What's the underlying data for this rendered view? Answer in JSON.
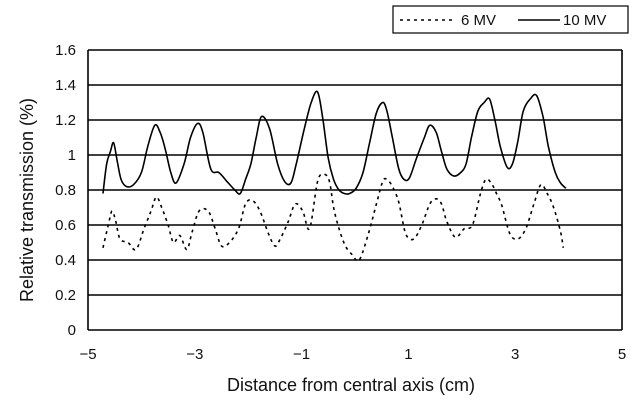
{
  "chart_data": {
    "type": "line",
    "title": "",
    "xlabel": "Distance from central axis (cm)",
    "ylabel": "Relative transmission (%)",
    "xlim": [
      -5,
      5
    ],
    "ylim": [
      0,
      1.6
    ],
    "x_ticks": [
      "-5",
      "-3",
      "-1",
      "1",
      "3",
      "5"
    ],
    "y_ticks": [
      "0",
      "0.2",
      "0.4",
      "0.6",
      "0.8",
      "1",
      "1.2",
      "1.4",
      "1.6"
    ],
    "grid": true,
    "legend_position": "top-right",
    "series": [
      {
        "name": "6 MV",
        "style": "dashed",
        "x": [
          -4.72,
          -4.62,
          -4.55,
          -4.48,
          -4.4,
          -4.25,
          -4.1,
          -3.95,
          -3.82,
          -3.72,
          -3.62,
          -3.5,
          -3.4,
          -3.28,
          -3.15,
          -3.05,
          -2.92,
          -2.75,
          -2.62,
          -2.5,
          -2.35,
          -2.18,
          -2.05,
          -1.92,
          -1.78,
          -1.62,
          -1.5,
          -1.4,
          -1.25,
          -1.12,
          -0.98,
          -0.85,
          -0.7,
          -0.58,
          -0.48,
          -0.4,
          -0.3,
          -0.18,
          -0.05,
          0.08,
          0.25,
          0.4,
          0.52,
          0.6,
          0.7,
          0.82,
          0.95,
          1.1,
          1.25,
          1.4,
          1.52,
          1.62,
          1.72,
          1.88,
          2.05,
          2.2,
          2.35,
          2.45,
          2.55,
          2.65,
          2.75,
          2.9,
          3.05,
          3.2,
          3.35,
          3.48,
          3.6,
          3.72,
          3.85,
          3.9
        ],
        "y": [
          0.47,
          0.6,
          0.68,
          0.62,
          0.52,
          0.5,
          0.46,
          0.58,
          0.68,
          0.76,
          0.7,
          0.6,
          0.5,
          0.54,
          0.46,
          0.56,
          0.68,
          0.68,
          0.58,
          0.48,
          0.5,
          0.58,
          0.72,
          0.74,
          0.68,
          0.55,
          0.48,
          0.52,
          0.62,
          0.72,
          0.68,
          0.58,
          0.85,
          0.89,
          0.85,
          0.7,
          0.58,
          0.48,
          0.43,
          0.4,
          0.55,
          0.72,
          0.85,
          0.86,
          0.82,
          0.73,
          0.55,
          0.52,
          0.6,
          0.72,
          0.75,
          0.72,
          0.62,
          0.53,
          0.58,
          0.6,
          0.78,
          0.86,
          0.84,
          0.78,
          0.71,
          0.55,
          0.52,
          0.58,
          0.72,
          0.83,
          0.78,
          0.7,
          0.56,
          0.47
        ]
      },
      {
        "name": "10 MV",
        "style": "solid",
        "x": [
          -4.72,
          -4.65,
          -4.58,
          -4.52,
          -4.45,
          -4.38,
          -4.28,
          -4.15,
          -4.0,
          -3.88,
          -3.75,
          -3.65,
          -3.55,
          -3.45,
          -3.35,
          -3.2,
          -3.08,
          -2.95,
          -2.85,
          -2.7,
          -2.55,
          -2.4,
          -2.25,
          -2.15,
          -2.05,
          -1.95,
          -1.85,
          -1.75,
          -1.6,
          -1.45,
          -1.32,
          -1.2,
          -1.1,
          -0.95,
          -0.82,
          -0.7,
          -0.6,
          -0.5,
          -0.4,
          -0.3,
          -0.2,
          -0.1,
          0.02,
          0.15,
          0.28,
          0.4,
          0.52,
          0.6,
          0.7,
          0.82,
          0.92,
          1.02,
          1.15,
          1.3,
          1.4,
          1.52,
          1.62,
          1.72,
          1.85,
          1.98,
          2.08,
          2.18,
          2.3,
          2.42,
          2.52,
          2.62,
          2.72,
          2.85,
          2.95,
          3.05,
          3.15,
          3.28,
          3.4,
          3.52,
          3.62,
          3.75,
          3.85,
          3.95
        ],
        "y": [
          0.78,
          0.95,
          1.02,
          1.07,
          0.96,
          0.86,
          0.82,
          0.83,
          0.9,
          1.05,
          1.17,
          1.13,
          1.03,
          0.9,
          0.84,
          0.95,
          1.1,
          1.18,
          1.13,
          0.92,
          0.9,
          0.85,
          0.8,
          0.78,
          0.86,
          0.95,
          1.1,
          1.22,
          1.15,
          0.95,
          0.85,
          0.84,
          0.95,
          1.15,
          1.3,
          1.36,
          1.2,
          0.98,
          0.86,
          0.8,
          0.78,
          0.78,
          0.81,
          0.9,
          1.08,
          1.24,
          1.3,
          1.25,
          1.1,
          0.92,
          0.86,
          0.87,
          0.98,
          1.1,
          1.17,
          1.13,
          1.02,
          0.92,
          0.88,
          0.9,
          0.95,
          1.1,
          1.25,
          1.3,
          1.32,
          1.2,
          1.05,
          0.93,
          0.95,
          1.08,
          1.25,
          1.32,
          1.34,
          1.22,
          1.05,
          0.9,
          0.84,
          0.81
        ]
      }
    ]
  }
}
